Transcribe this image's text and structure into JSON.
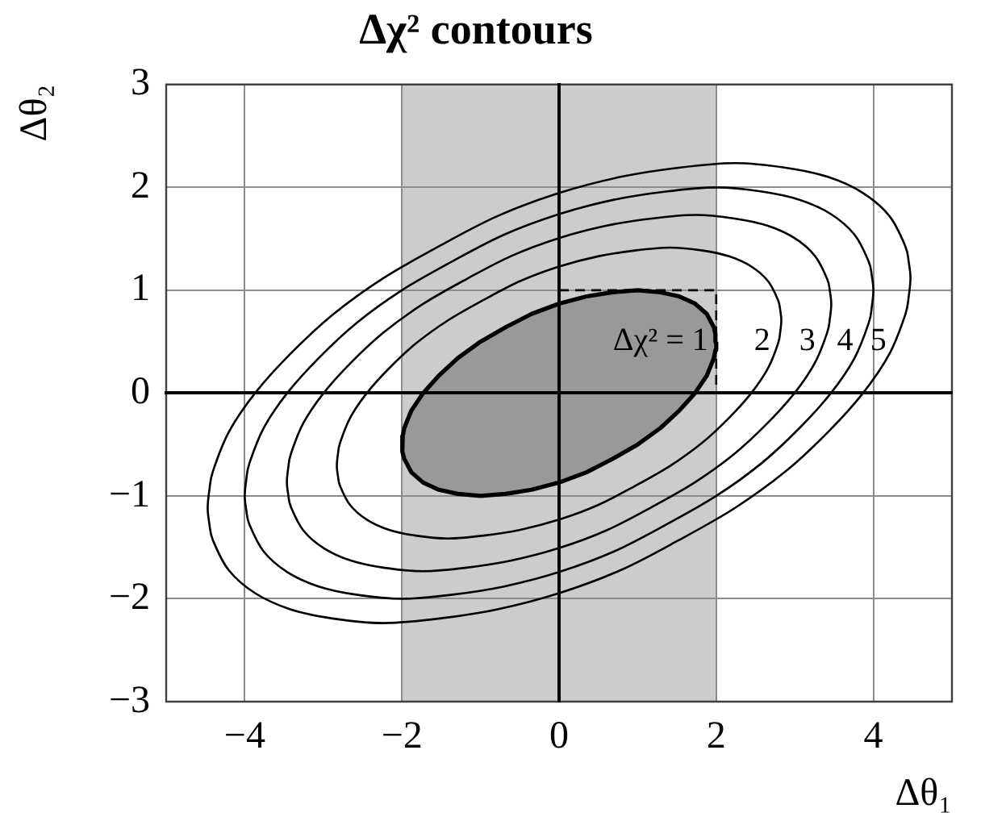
{
  "chart_data": {
    "type": "line",
    "title": "Δχ² contours",
    "xlabel": "Δθ₁",
    "ylabel": "Δθ₂",
    "xlim": [
      -5,
      5
    ],
    "ylim": [
      -3,
      3
    ],
    "xticks": [
      {
        "value": -4,
        "label": "−4"
      },
      {
        "value": -2,
        "label": "−2"
      },
      0,
      2,
      4
    ],
    "yticks": [
      {
        "value": -3,
        "label": "−3"
      },
      {
        "value": -2,
        "label": "−2"
      },
      {
        "value": -1,
        "label": "−1"
      },
      0,
      1,
      2,
      3
    ],
    "grid": true,
    "marker": "none",
    "bands": [
      {
        "axis": "x",
        "from": -2,
        "to": 2,
        "color": "#cccccc"
      }
    ],
    "annotations": [
      "2",
      "3",
      "4",
      "5"
    ],
    "series": [
      {
        "name": "Δχ² = 1",
        "type": "area",
        "color": "#999999",
        "x": [
          2,
          1.99,
          1.97,
          1.88,
          1.73,
          1.53,
          1.29,
          1,
          0.68,
          0.35,
          0,
          -0.35,
          -0.68,
          -1,
          -1.29,
          -1.53,
          -1.73,
          -1.88,
          -1.97,
          -1.99,
          -2,
          -1.99,
          -1.97,
          -1.88,
          -1.73,
          -1.53,
          -1.29,
          -1,
          -0.68,
          -0.35,
          0,
          0.35,
          0.68,
          1,
          1.29,
          1.53,
          1.73,
          1.88,
          1.97,
          1.99,
          2
        ],
        "values": [
          0.5,
          0.57,
          0.64,
          0.77,
          0.87,
          0.94,
          0.98,
          1,
          0.98,
          0.94,
          0.87,
          0.77,
          0.64,
          0.5,
          0.34,
          0.17,
          0,
          -0.17,
          -0.34,
          -0.42,
          -0.5,
          -0.57,
          -0.64,
          -0.77,
          -0.87,
          -0.94,
          -0.98,
          -1,
          -0.98,
          -0.94,
          -0.87,
          -0.77,
          -0.64,
          -0.5,
          -0.34,
          -0.17,
          0,
          0.17,
          0.34,
          0.42,
          0.5
        ]
      },
      {
        "type": "line",
        "color": "#000000",
        "line_style": "dashed",
        "x": [
          0,
          2,
          2
        ],
        "values": [
          1,
          1,
          0
        ]
      }
    ]
  }
}
